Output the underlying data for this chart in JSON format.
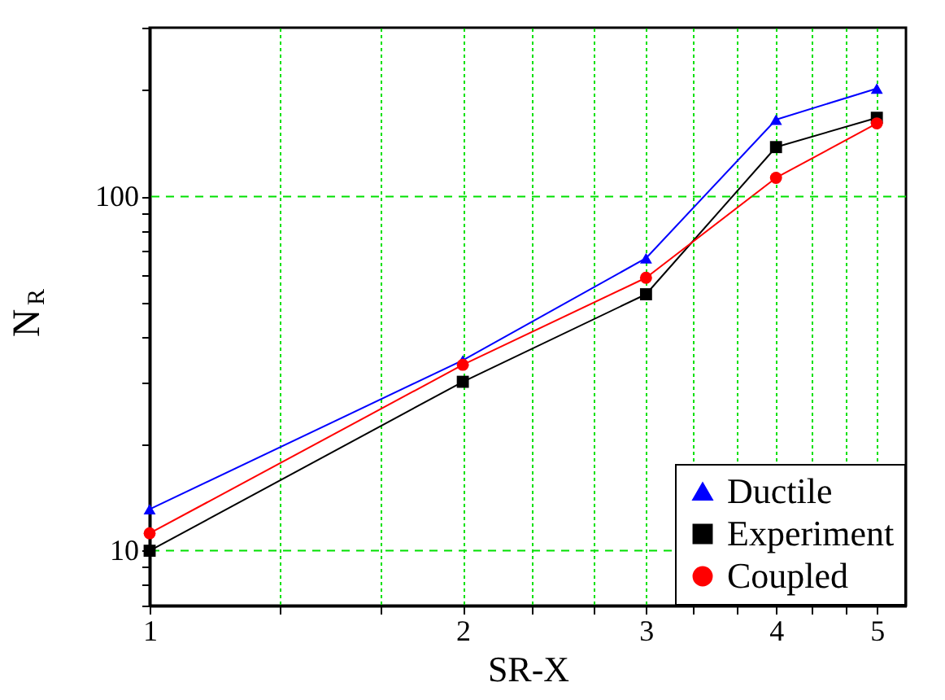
{
  "chart_data": {
    "type": "line",
    "xlabel": "SR-X",
    "ylabel": "N$_{R}$",
    "log": "xy",
    "grid": true,
    "legend": "bottom right",
    "line_style": "solid",
    "x": [
      1,
      2,
      3,
      4,
      5
    ],
    "series": [
      {
        "name": "Ductile",
        "color": "#0000ff",
        "marker": "triangle",
        "values": [
          13.1,
          34.5,
          67,
          165,
          202
        ]
      },
      {
        "name": "Experiment",
        "color": "#000000",
        "marker": "square",
        "values": [
          10,
          30,
          53,
          138,
          167
        ]
      },
      {
        "name": "Coupled",
        "color": "#ff0000",
        "marker": "circle",
        "values": [
          11.2,
          33.5,
          59,
          113,
          161
        ]
      }
    ],
    "xlim": [
      1,
      5.333
    ],
    "ylim": [
      7,
      300
    ],
    "xticks": [
      1,
      {
        "value": 1.333,
        "label": null
      },
      {
        "value": 1.667,
        "label": null
      },
      2,
      {
        "value": 2.333,
        "label": null
      },
      {
        "value": 2.667,
        "label": null
      },
      3,
      {
        "value": 3.333,
        "label": null
      },
      {
        "value": 3.667,
        "label": null
      },
      4,
      {
        "value": 4.333,
        "label": null
      },
      {
        "value": 4.667,
        "label": null
      },
      5
    ],
    "yticks": [
      {
        "value": 7,
        "label": null
      },
      {
        "value": 8,
        "label": null
      },
      {
        "value": 9,
        "label": null
      },
      10,
      {
        "value": 20,
        "label": null
      },
      {
        "value": 30,
        "label": null
      },
      {
        "value": 40,
        "label": null
      },
      {
        "value": 50,
        "label": null
      },
      {
        "value": 60,
        "label": null
      },
      {
        "value": 70,
        "label": null
      },
      {
        "value": 80,
        "label": null
      },
      {
        "value": 90,
        "label": null
      },
      100,
      {
        "value": 200,
        "label": null
      },
      {
        "value": 300,
        "label": null
      }
    ]
  }
}
